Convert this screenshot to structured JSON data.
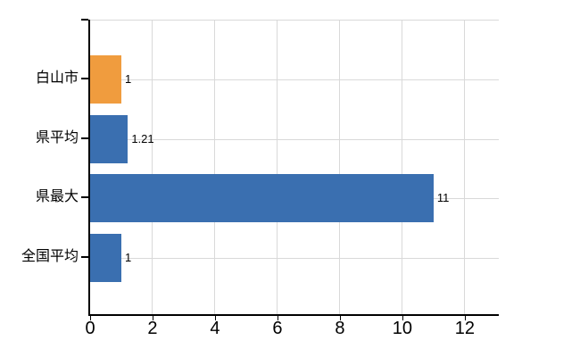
{
  "chart_data": {
    "type": "bar",
    "orientation": "horizontal",
    "title": "",
    "categories": [
      "白山市",
      "県平均",
      "県最大",
      "全国平均"
    ],
    "values": [
      1,
      1.21,
      11,
      1
    ],
    "value_labels": [
      "1",
      "1.21",
      "11",
      "1"
    ],
    "bar_colors": [
      "#F09C3E",
      "#3A6FB0",
      "#3A6FB0",
      "#3A6FB0"
    ],
    "x_tick_labels": [
      "0",
      "2",
      "4",
      "6",
      "8",
      "10",
      "12"
    ],
    "x_tick_values": [
      0,
      2,
      4,
      6,
      8,
      10,
      12
    ],
    "xlim": [
      0,
      13.09
    ],
    "grid": true,
    "legend_position": "none"
  },
  "colors": {
    "background": "#FFFFFF",
    "grid": "#D9D9D9",
    "axis": "#000000",
    "text": "#000000",
    "highlight_bar": "#F09C3E",
    "default_bar": "#3A6FB0"
  }
}
